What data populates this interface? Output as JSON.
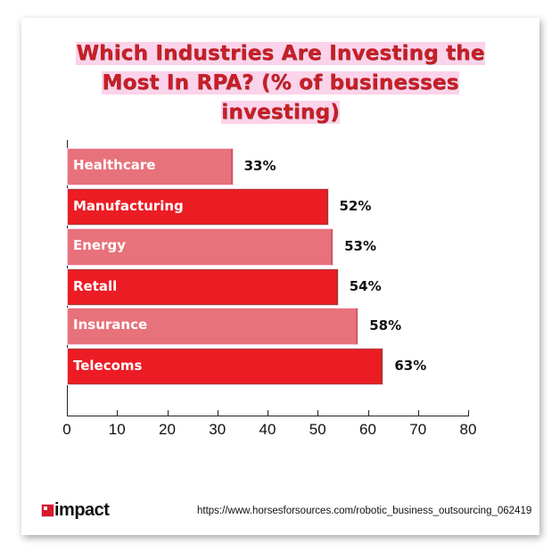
{
  "title": {
    "line1": "Which Industries Are Investing the",
    "line2": "Most In RPA? (% of businesses",
    "line3": "investing)"
  },
  "colors": {
    "title_red": "#c81e28",
    "bar_light": "#e8727b",
    "bar_dark": "#ec1c24"
  },
  "chart_data": {
    "type": "bar",
    "orientation": "horizontal",
    "title": "Which Industries Are Investing the Most In RPA? (% of businesses investing)",
    "categories": [
      "Healthcare",
      "Manufacturing",
      "Energy",
      "Retall",
      "Insurance",
      "Telecoms"
    ],
    "values": [
      33,
      52,
      53,
      54,
      58,
      63
    ],
    "value_labels": [
      "33%",
      "52%",
      "53%",
      "54%",
      "58%",
      "63%"
    ],
    "xlabel": "",
    "ylabel": "",
    "xlim": [
      0,
      80
    ],
    "xticks": [
      "0",
      "10",
      "20",
      "30",
      "40",
      "50",
      "60",
      "70",
      "80"
    ],
    "grid": false,
    "legend": null
  },
  "footer": {
    "logo_text": "impact",
    "source_url": "https://www.horsesforsources.com/robotic_business_outsourcing_062419"
  }
}
